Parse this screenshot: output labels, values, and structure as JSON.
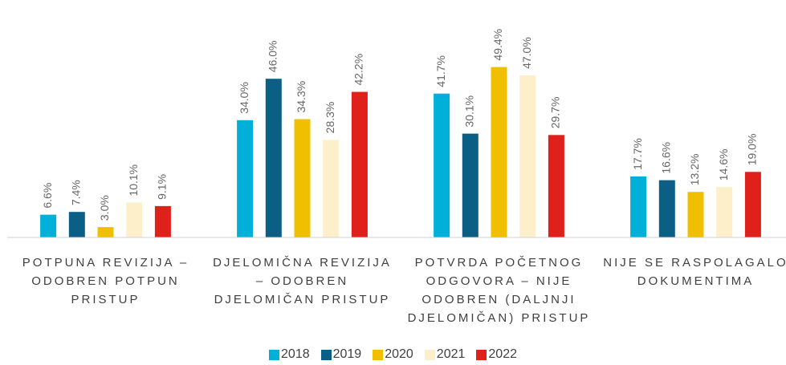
{
  "chart_data": {
    "type": "bar",
    "categories": [
      "POTPUNA REVIZIJA – ODOBREN POTPUN PRISTUP",
      "DJELOMIČNA REVIZIJA – ODOBREN DJELOMIČAN PRISTUP",
      "POTVRDA POČETNOG ODGOVORA – NIJE ODOBREN (DALJNJI DJELOMIČAN) PRISTUP",
      "NIJE SE RASPOLAGALO DOKUMENTIMA"
    ],
    "series": [
      {
        "name": "2018",
        "color": "#00b0d8",
        "values": [
          6.6,
          34.0,
          41.7,
          17.7
        ],
        "value_labels": [
          "6.6%",
          "34.0%",
          "41.7%",
          "17.7%"
        ]
      },
      {
        "name": "2019",
        "color": "#0b5f85",
        "values": [
          7.4,
          46.0,
          30.1,
          16.6
        ],
        "value_labels": [
          "7.4%",
          "46.0%",
          "30.1%",
          "16.6%"
        ]
      },
      {
        "name": "2020",
        "color": "#f0c000",
        "values": [
          3.0,
          34.3,
          49.4,
          13.2
        ],
        "value_labels": [
          "3.0%",
          "34.3%",
          "49.4%",
          "13.2%"
        ]
      },
      {
        "name": "2021",
        "color": "#fdefca",
        "values": [
          10.1,
          28.3,
          47.0,
          14.6
        ],
        "value_labels": [
          "10.1%",
          "28.3%",
          "47.0%",
          "14.6%"
        ]
      },
      {
        "name": "2022",
        "color": "#e0201b",
        "values": [
          9.1,
          42.2,
          29.7,
          19.0
        ],
        "value_labels": [
          "9.1%",
          "42.2%",
          "29.7%",
          "19.0%"
        ]
      }
    ],
    "ylim": [
      0,
      50
    ],
    "legend": "bottom"
  }
}
